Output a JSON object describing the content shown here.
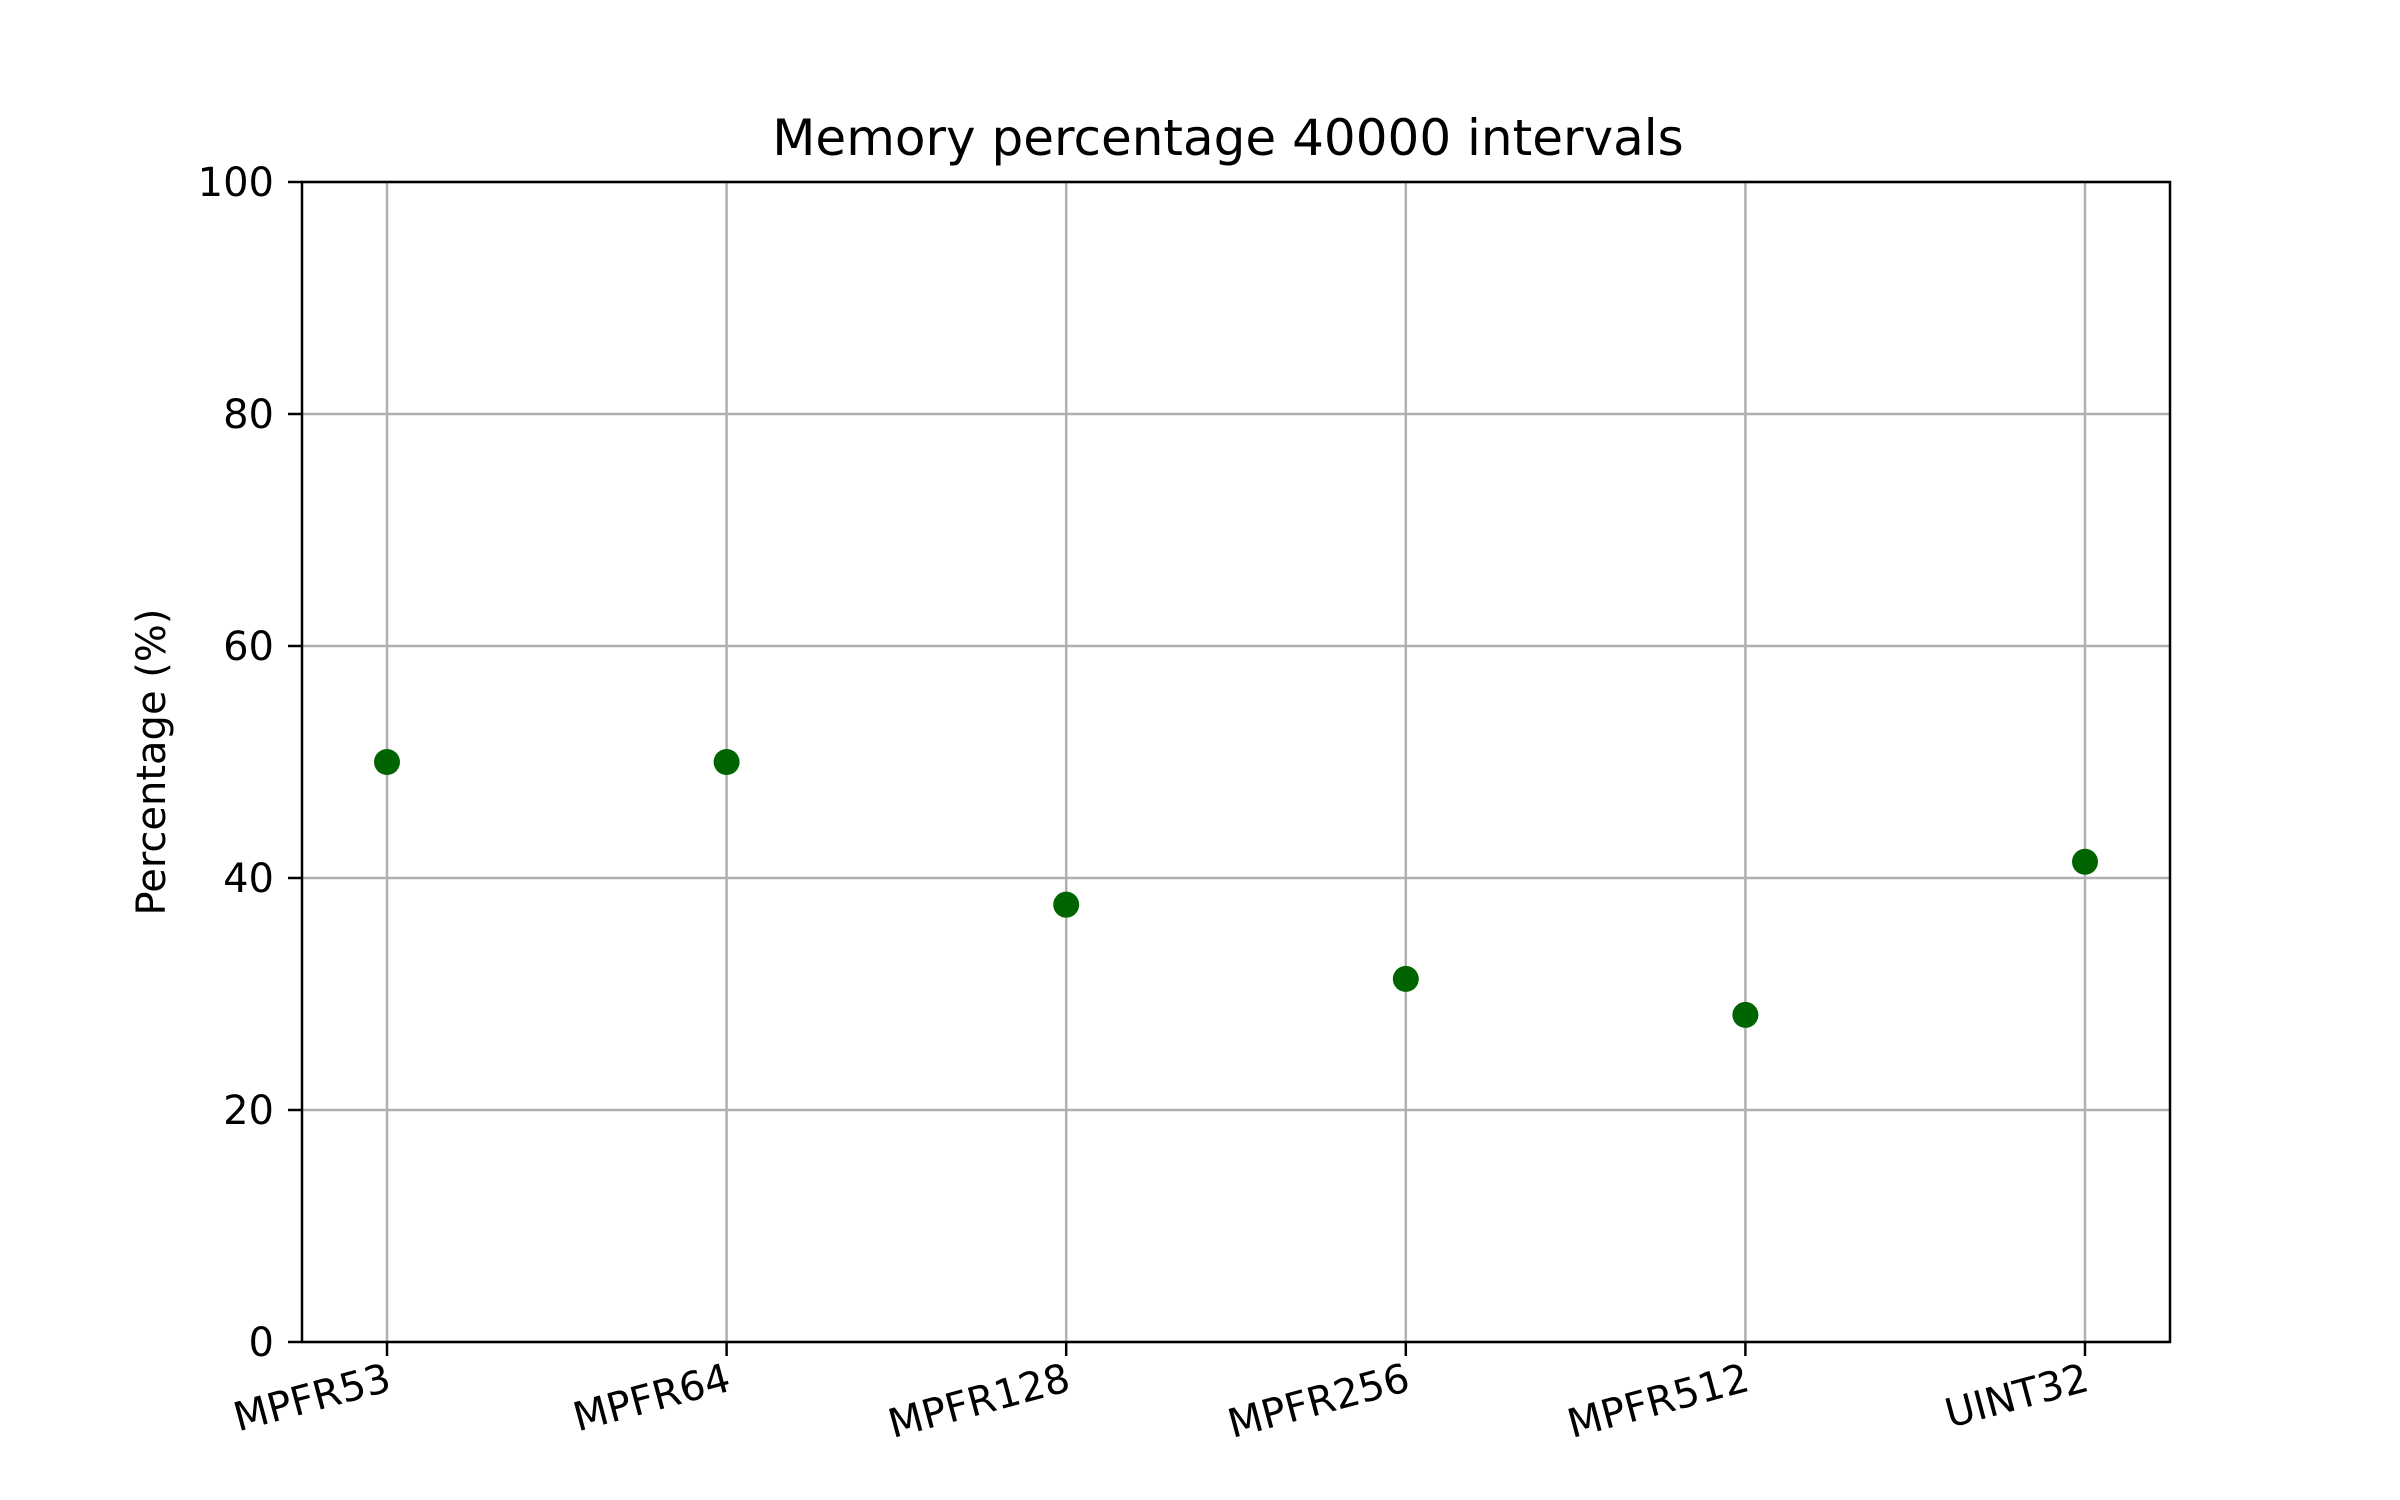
{
  "chart_data": {
    "type": "scatter",
    "title": "Memory percentage 40000 intervals",
    "xlabel": "",
    "ylabel": "Percentage (%)",
    "categories": [
      "MPFR53",
      "MPFR64",
      "MPFR128",
      "MPFR256",
      "MPFR512",
      "UINT32"
    ],
    "values": [
      50.0,
      50.0,
      37.7,
      31.3,
      28.2,
      41.4
    ],
    "ylim": [
      0,
      100
    ],
    "yticks": [
      0,
      20,
      40,
      60,
      80,
      100
    ],
    "grid": true,
    "marker_color": "#006400",
    "grid_color": "#b0b0b0",
    "axis_color": "#000000",
    "xtick_rotation": "15deg"
  }
}
